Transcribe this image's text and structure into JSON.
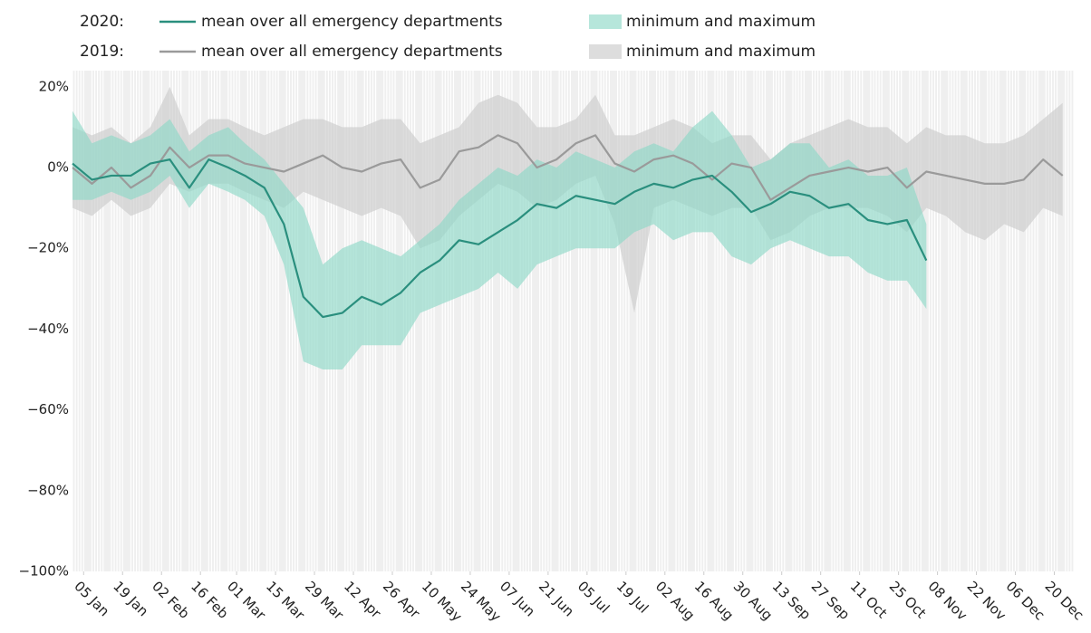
{
  "chart_data": {
    "type": "line",
    "legend_groups": [
      "2020:",
      "2019:"
    ],
    "x": [
      "01 Jan",
      "08 Jan",
      "15 Jan",
      "22 Jan",
      "29 Jan",
      "05 Feb",
      "12 Feb",
      "19 Feb",
      "26 Feb",
      "04 Mar",
      "11 Mar",
      "18 Mar",
      "25 Mar",
      "01 Apr",
      "08 Apr",
      "15 Apr",
      "22 Apr",
      "29 Apr",
      "06 May",
      "13 May",
      "20 May",
      "27 May",
      "03 Jun",
      "10 Jun",
      "17 Jun",
      "24 Jun",
      "01 Jul",
      "08 Jul",
      "15 Jul",
      "22 Jul",
      "29 Jul",
      "05 Aug",
      "12 Aug",
      "19 Aug",
      "26 Aug",
      "02 Sep",
      "09 Sep",
      "16 Sep",
      "23 Sep",
      "30 Sep",
      "07 Oct",
      "14 Oct",
      "21 Oct",
      "28 Oct",
      "04 Nov",
      "11 Nov",
      "18 Nov",
      "25 Nov",
      "02 Dec",
      "09 Dec",
      "16 Dec",
      "23 Dec"
    ],
    "xlim": [
      "01 Jan",
      "27 Dec"
    ],
    "xticks": [
      "05 Jan",
      "19 Jan",
      "02 Feb",
      "16 Feb",
      "01 Mar",
      "15 Mar",
      "29 Mar",
      "12 Apr",
      "26 Apr",
      "10 May",
      "24 May",
      "07 Jun",
      "21 Jun",
      "05 Jul",
      "19 Jul",
      "02 Aug",
      "16 Aug",
      "30 Aug",
      "13 Sep",
      "27 Sep",
      "11 Oct",
      "25 Oct",
      "08 Nov",
      "22 Nov",
      "06 Dec",
      "20 Dec"
    ],
    "ylim": [
      -100,
      24
    ],
    "yticks": [
      {
        "value": 20,
        "label": "20%"
      },
      {
        "value": 0,
        "label": "0%"
      },
      {
        "value": -20,
        "label": "−20%"
      },
      {
        "value": -40,
        "label": "−40%"
      },
      {
        "value": -60,
        "label": "−60%"
      },
      {
        "value": -80,
        "label": "−80%"
      },
      {
        "value": -100,
        "label": "−100%"
      }
    ],
    "series": [
      {
        "name": "mean over all emergency departments",
        "group": 0,
        "kind": "line",
        "color": "#2a8f7e",
        "values": [
          1,
          -3,
          -2,
          -2,
          1,
          2,
          -5,
          2,
          0,
          -2,
          -5,
          -14,
          -32,
          -37,
          -36,
          -32,
          -34,
          -31,
          -26,
          -23,
          -18,
          -19,
          -16,
          -13,
          -9,
          -10,
          -7,
          -8,
          -9,
          -6,
          -4,
          -5,
          -3,
          -2,
          -6,
          -11,
          -9,
          -6,
          -7,
          -10,
          -9,
          -13,
          -14,
          -13,
          -23,
          null,
          null,
          null,
          null,
          null,
          null,
          null
        ]
      },
      {
        "name": "minimum and maximum",
        "group": 0,
        "kind": "band",
        "color": "#8fd9c8",
        "opacity": 0.65,
        "low": [
          -8,
          -8,
          -6,
          -8,
          -6,
          -2,
          -10,
          -4,
          -6,
          -8,
          -12,
          -24,
          -48,
          -50,
          -50,
          -44,
          -44,
          -44,
          -36,
          -34,
          -32,
          -30,
          -26,
          -30,
          -24,
          -22,
          -20,
          -20,
          -20,
          -16,
          -14,
          -18,
          -16,
          -16,
          -22,
          -24,
          -20,
          -18,
          -20,
          -22,
          -22,
          -26,
          -28,
          -28,
          -35,
          null,
          null,
          null,
          null,
          null,
          null,
          null
        ],
        "high": [
          14,
          6,
          8,
          6,
          8,
          12,
          4,
          8,
          10,
          6,
          2,
          -4,
          -10,
          -24,
          -20,
          -18,
          -20,
          -22,
          -18,
          -14,
          -8,
          -4,
          0,
          -2,
          2,
          0,
          4,
          2,
          0,
          4,
          6,
          4,
          10,
          14,
          8,
          0,
          2,
          6,
          6,
          0,
          2,
          -2,
          -2,
          0,
          -14,
          null,
          null,
          null,
          null,
          null,
          null,
          null
        ]
      },
      {
        "name": "mean over all emergency departments",
        "group": 1,
        "kind": "line",
        "color": "#9a9a9a",
        "values": [
          0,
          -4,
          0,
          -5,
          -2,
          5,
          0,
          3,
          3,
          1,
          0,
          -1,
          1,
          3,
          0,
          -1,
          1,
          2,
          -5,
          -3,
          4,
          5,
          8,
          6,
          0,
          2,
          6,
          8,
          1,
          -1,
          2,
          3,
          1,
          -3,
          1,
          0,
          -8,
          -5,
          -2,
          -1,
          0,
          -1,
          0,
          -5,
          -1,
          -2,
          -3,
          -4,
          -4,
          -3,
          2,
          -2
        ]
      },
      {
        "name": "minimum and maximum",
        "group": 1,
        "kind": "band",
        "color": "#cfcfcf",
        "opacity": 0.7,
        "low": [
          -10,
          -12,
          -8,
          -12,
          -10,
          -4,
          -6,
          -4,
          -4,
          -6,
          -8,
          -10,
          -6,
          -8,
          -10,
          -12,
          -10,
          -12,
          -20,
          -18,
          -12,
          -8,
          -4,
          -6,
          -10,
          -8,
          -4,
          -2,
          -14,
          -36,
          -10,
          -8,
          -10,
          -12,
          -10,
          -10,
          -18,
          -16,
          -12,
          -10,
          -10,
          -10,
          -12,
          -16,
          -10,
          -12,
          -16,
          -18,
          -14,
          -16,
          -10,
          -12
        ],
        "high": [
          10,
          8,
          10,
          6,
          10,
          20,
          8,
          12,
          12,
          10,
          8,
          10,
          12,
          12,
          10,
          10,
          12,
          12,
          6,
          8,
          10,
          16,
          18,
          16,
          10,
          10,
          12,
          18,
          8,
          8,
          10,
          12,
          10,
          6,
          8,
          8,
          2,
          6,
          8,
          10,
          12,
          10,
          10,
          6,
          10,
          8,
          8,
          6,
          6,
          8,
          12,
          16
        ]
      }
    ]
  }
}
